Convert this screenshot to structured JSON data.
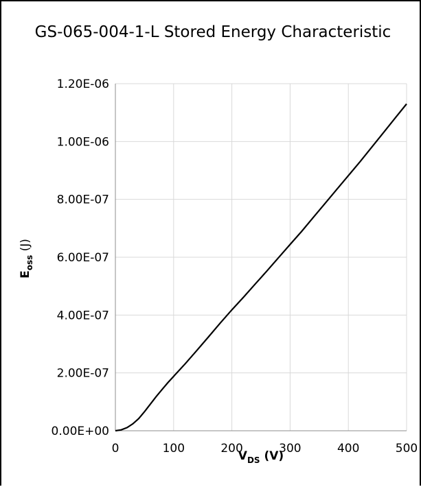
{
  "chart_data": {
    "type": "line",
    "title": "GS-065-004-1-L Stored Energy Characteristic",
    "xlabel": {
      "main": "V",
      "sub": "DS",
      "rest": " (V)"
    },
    "ylabel": {
      "main": "E",
      "sub": "oss",
      "rest": " (J)"
    },
    "xlim": [
      0,
      500
    ],
    "ylim": [
      0,
      1.2e-06
    ],
    "x_ticks": [
      0,
      100,
      200,
      300,
      400,
      500
    ],
    "x_tick_labels": [
      "0",
      "100",
      "200",
      "300",
      "400",
      "500"
    ],
    "y_ticks": [
      0,
      2e-07,
      4e-07,
      6e-07,
      8e-07,
      1e-06,
      1.2e-06
    ],
    "y_tick_labels": [
      "0.00E+00",
      "2.00E-07",
      "4.00E-07",
      "6.00E-07",
      "8.00E-07",
      "1.00E-06",
      "1.20E-06"
    ],
    "grid": true,
    "series": [
      {
        "x": [
          0,
          10,
          20,
          30,
          40,
          50,
          60,
          70,
          80,
          90,
          100,
          120,
          140,
          160,
          180,
          200,
          220,
          240,
          260,
          280,
          300,
          320,
          340,
          360,
          380,
          400,
          420,
          440,
          460,
          480,
          500
        ],
        "y": [
          0,
          3e-09,
          1.1e-08,
          2.4e-08,
          4.2e-08,
          6.6e-08,
          9.2e-08,
          1.18e-07,
          1.42e-07,
          1.66e-07,
          1.88e-07,
          2.32e-07,
          2.78e-07,
          3.25e-07,
          3.72e-07,
          4.18e-07,
          4.62e-07,
          5.07e-07,
          5.52e-07,
          5.98e-07,
          6.44e-07,
          6.9e-07,
          7.38e-07,
          7.86e-07,
          8.34e-07,
          8.82e-07,
          9.3e-07,
          9.8e-07,
          1.03e-06,
          1.08e-06,
          1.13e-06
        ]
      }
    ]
  }
}
